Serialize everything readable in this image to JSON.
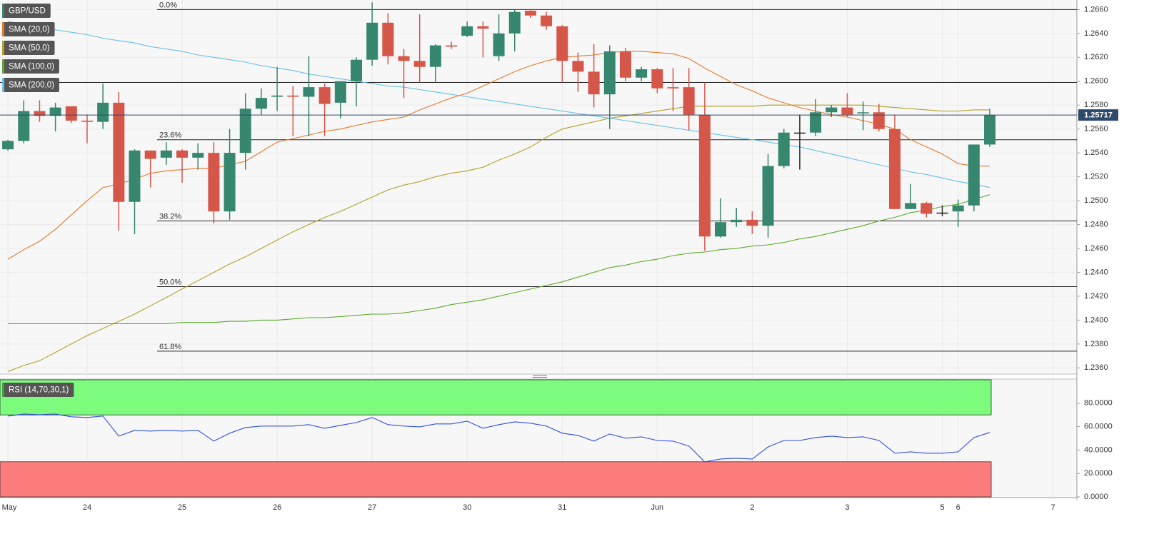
{
  "chart_data": [
    {
      "type": "candlestick",
      "name": "GBP/USD",
      "up_color": "#37866f",
      "down_color": "#d5574a",
      "categories": [
        "May",
        null,
        null,
        null,
        null,
        "24",
        null,
        null,
        null,
        null,
        null,
        "25",
        null,
        null,
        null,
        null,
        null,
        "26",
        null,
        null,
        null,
        null,
        null,
        "27",
        null,
        null,
        null,
        null,
        null,
        "30",
        null,
        null,
        null,
        null,
        null,
        "31",
        null,
        null,
        null,
        null,
        null,
        "Jun",
        null,
        null,
        null,
        null,
        null,
        "2",
        null,
        null,
        null,
        null,
        null,
        "3",
        null,
        null,
        null,
        null,
        null,
        "5",
        "6",
        null,
        null,
        null,
        null,
        null,
        "7",
        null
      ],
      "open": [
        1.2543,
        1.255,
        1.2575,
        1.2571,
        1.2579,
        1.2567,
        1.2566,
        1.2582,
        1.2499,
        1.2542,
        1.2536,
        1.2542,
        1.2536,
        1.254,
        1.2491,
        1.254,
        1.2577,
        1.2587,
        1.2588,
        1.2587,
        1.2595,
        1.2582,
        1.26,
        1.2618,
        1.2649,
        1.2621,
        1.2617,
        1.2612,
        1.263,
        1.2638,
        1.2646,
        1.2621,
        1.264,
        1.2659,
        1.2655,
        1.2646,
        1.2617,
        1.2608,
        1.2589,
        1.2625,
        1.2603,
        1.261,
        1.2595,
        1.2595,
        1.2572,
        1.247,
        1.2482,
        1.2484,
        1.2479,
        1.2529,
        1.2557,
        1.2557,
        1.2574,
        1.2578,
        1.2573,
        1.2574,
        1.256,
        1.2493,
        1.2498,
        1.249,
        1.2491,
        1.2496,
        1.2547,
        null,
        null,
        null,
        null,
        null
      ],
      "high": [
        1.2551,
        1.2584,
        1.2584,
        1.2582,
        1.2579,
        1.2572,
        1.2598,
        1.2591,
        1.2543,
        1.2542,
        1.2549,
        1.2543,
        1.2548,
        1.2549,
        1.256,
        1.259,
        1.2594,
        1.2612,
        1.2596,
        1.2621,
        1.2598,
        1.26,
        1.262,
        1.2666,
        1.2657,
        1.2627,
        1.2656,
        1.2631,
        1.2633,
        1.265,
        1.265,
        1.2656,
        1.266,
        1.266,
        1.2658,
        1.2647,
        1.2624,
        1.2631,
        1.263,
        1.2628,
        1.2612,
        1.2611,
        1.2611,
        1.2611,
        1.2599,
        1.2502,
        1.2494,
        1.2491,
        1.2539,
        1.256,
        1.2572,
        1.2585,
        1.258,
        1.259,
        1.2583,
        1.2581,
        1.2572,
        1.2514,
        1.2499,
        1.2496,
        1.2501,
        1.2547,
        1.2577,
        null,
        null,
        null,
        null,
        null
      ],
      "low": [
        1.2542,
        1.2548,
        1.2566,
        1.2558,
        1.2565,
        1.2548,
        1.256,
        1.2475,
        1.2472,
        1.2511,
        1.253,
        1.2515,
        1.2526,
        1.2481,
        1.2484,
        1.2526,
        1.2572,
        1.2575,
        1.2554,
        1.2554,
        1.2554,
        1.2569,
        1.2579,
        1.2613,
        1.2614,
        1.2586,
        1.2599,
        1.2599,
        1.2627,
        1.2637,
        1.262,
        1.2617,
        1.2625,
        1.2653,
        1.2643,
        1.2599,
        1.2591,
        1.2578,
        1.256,
        1.26,
        1.26,
        1.259,
        1.2575,
        1.2559,
        1.2458,
        1.2469,
        1.2478,
        1.2472,
        1.2469,
        1.2527,
        1.2526,
        1.2554,
        1.257,
        1.257,
        1.2559,
        1.2558,
        1.2493,
        1.2493,
        1.2486,
        1.2487,
        1.2478,
        1.2491,
        1.2545,
        null,
        null,
        null,
        null,
        null
      ],
      "close": [
        1.255,
        1.2575,
        1.2571,
        1.2578,
        1.2567,
        1.2566,
        1.2582,
        1.2499,
        1.2542,
        1.2535,
        1.2542,
        1.2536,
        1.254,
        1.2491,
        1.254,
        1.2577,
        1.2586,
        1.2588,
        1.2587,
        1.2595,
        1.2581,
        1.26,
        1.2618,
        1.2649,
        1.2621,
        1.2617,
        1.2612,
        1.263,
        1.2629,
        1.2646,
        1.2644,
        1.264,
        1.2658,
        1.2655,
        1.2646,
        1.2617,
        1.2608,
        1.2589,
        1.2625,
        1.2603,
        1.261,
        1.2594,
        1.2594,
        1.2572,
        1.247,
        1.2482,
        1.2484,
        1.2479,
        1.2529,
        1.2557,
        1.2557,
        1.2574,
        1.2578,
        1.2572,
        1.2574,
        1.256,
        1.2493,
        1.2498,
        1.2489,
        1.249,
        1.2496,
        1.2547,
        1.25717,
        null,
        null,
        null,
        null,
        null
      ],
      "overlays": [
        {
          "name": "SMA (20,0)",
          "color": "#e8772e",
          "values": [
            1.2451,
            1.2459,
            1.2466,
            1.2476,
            1.2488,
            1.25,
            1.2511,
            1.2514,
            1.2518,
            1.2523,
            1.2525,
            1.2526,
            1.2527,
            1.2527,
            1.253,
            1.2533,
            1.2541,
            1.2549,
            1.2552,
            1.2555,
            1.2558,
            1.256,
            1.2563,
            1.2566,
            1.2568,
            1.257,
            1.2576,
            1.2581,
            1.2586,
            1.259,
            1.2596,
            1.2602,
            1.2608,
            1.2613,
            1.2617,
            1.262,
            1.2621,
            1.2622,
            1.2624,
            1.2625,
            1.2625,
            1.2624,
            1.2623,
            1.2619,
            1.2611,
            1.2604,
            1.2597,
            1.2592,
            1.2586,
            1.2582,
            1.2578,
            1.2575,
            1.2572,
            1.257,
            1.2567,
            1.2564,
            1.256,
            1.2551,
            1.2545,
            1.2539,
            1.2531,
            1.2529,
            1.2529,
            null,
            null,
            null,
            null,
            null
          ]
        },
        {
          "name": "SMA (50,0)",
          "color": "#b3a027",
          "values": [
            1.2357,
            1.2362,
            1.2366,
            1.2373,
            1.238,
            1.2387,
            1.2393,
            1.2399,
            1.2405,
            1.2412,
            1.2419,
            1.2426,
            1.2433,
            1.244,
            1.2447,
            1.2453,
            1.246,
            1.2467,
            1.2474,
            1.248,
            1.2486,
            1.2491,
            1.2497,
            1.2503,
            1.2509,
            1.2513,
            1.2516,
            1.252,
            1.2523,
            1.2525,
            1.2528,
            1.2534,
            1.2539,
            1.2545,
            1.2553,
            1.256,
            1.2563,
            1.2566,
            1.2569,
            1.2571,
            1.2573,
            1.2575,
            1.2577,
            1.2579,
            1.2579,
            1.2579,
            1.2579,
            1.2579,
            1.258,
            1.258,
            1.258,
            1.258,
            1.258,
            1.258,
            1.258,
            1.2579,
            1.2578,
            1.2577,
            1.2576,
            1.2575,
            1.2575,
            1.2576,
            1.2576,
            null,
            null,
            null,
            null,
            null
          ]
        },
        {
          "name": "SMA (100,0)",
          "color": "#5aab2c",
          "values": [
            1.2397,
            1.2397,
            1.2397,
            1.2397,
            1.2397,
            1.2397,
            1.2397,
            1.2397,
            1.2397,
            1.2397,
            1.2397,
            1.2398,
            1.2398,
            1.2398,
            1.2399,
            1.2399,
            1.24,
            1.24,
            1.2401,
            1.2402,
            1.2402,
            1.2403,
            1.2404,
            1.2405,
            1.2405,
            1.2406,
            1.2408,
            1.241,
            1.2413,
            1.2415,
            1.2417,
            1.242,
            1.2423,
            1.2426,
            1.2429,
            1.2432,
            1.2436,
            1.244,
            1.2444,
            1.2446,
            1.2449,
            1.2451,
            1.2454,
            1.2456,
            1.2457,
            1.2459,
            1.246,
            1.2462,
            1.2463,
            1.2465,
            1.2468,
            1.247,
            1.2473,
            1.2476,
            1.2479,
            1.2483,
            1.2486,
            1.249,
            1.2492,
            1.2495,
            1.2497,
            1.2501,
            1.2505,
            null,
            null,
            null,
            null,
            null
          ]
        },
        {
          "name": "SMA (200,0)",
          "color": "#6bbfe8",
          "values": [
            1.265,
            1.2648,
            1.2645,
            1.2643,
            1.2641,
            1.2639,
            1.2636,
            1.2634,
            1.2632,
            1.2629,
            1.2627,
            1.2625,
            1.2622,
            1.262,
            1.2618,
            1.2616,
            1.2613,
            1.2611,
            1.2609,
            1.2606,
            1.2604,
            1.2602,
            1.26,
            1.2598,
            1.2596,
            1.2595,
            1.2593,
            1.2591,
            1.2589,
            1.2587,
            1.2585,
            1.2583,
            1.2581,
            1.2579,
            1.2577,
            1.2575,
            1.2573,
            1.2571,
            1.2569,
            1.2567,
            1.2565,
            1.2563,
            1.2561,
            1.2559,
            1.2557,
            1.2555,
            1.2553,
            1.2551,
            1.2549,
            1.2547,
            1.2545,
            1.2542,
            1.2539,
            1.2536,
            1.2533,
            1.253,
            1.2527,
            1.2524,
            1.2522,
            1.2519,
            1.2516,
            1.2514,
            1.2511,
            null,
            null,
            null,
            null,
            null
          ]
        }
      ],
      "levels": [
        {
          "label": "0.0%",
          "value": 1.266
        },
        {
          "label": "23.6%",
          "value": 1.2551
        },
        {
          "label": "38.2%",
          "value": 1.2483
        },
        {
          "label": "50.0%",
          "value": 1.2428
        },
        {
          "label": "61.8%",
          "value": 1.2374
        }
      ],
      "lines": [
        1.2599
      ],
      "last_price": 1.25717,
      "last_price_color": "#2e4a6b",
      "ylim": [
        1.2356,
        1.2668
      ],
      "yticks": [
        {
          "value": 1.236,
          "label": "1.2360"
        },
        {
          "value": 1.238,
          "label": "1.2380"
        },
        {
          "value": 1.24,
          "label": "1.2400"
        },
        {
          "value": 1.242,
          "label": "1.2420"
        },
        {
          "value": 1.244,
          "label": "1.2440"
        },
        {
          "value": 1.246,
          "label": "1.2460"
        },
        {
          "value": 1.248,
          "label": "1.2480"
        },
        {
          "value": 1.25,
          "label": "1.2500"
        },
        {
          "value": 1.252,
          "label": "1.2520"
        },
        {
          "value": 1.254,
          "label": "1.2540"
        },
        {
          "value": 1.256,
          "label": "1.2560"
        },
        {
          "value": 1.258,
          "label": "1.2580"
        },
        {
          "value": 1.26,
          "label": "1.2600"
        },
        {
          "value": 1.262,
          "label": "1.2620"
        },
        {
          "value": 1.264,
          "label": "1.2640"
        },
        {
          "value": 1.266,
          "label": "1.2660"
        }
      ],
      "grid": true
    },
    {
      "type": "line",
      "name": "RSI (14,70,30,1)",
      "color": "#2f4fe0",
      "legend_color": "#3aa53a",
      "values": [
        69.0,
        70.8,
        70.2,
        70.8,
        68.4,
        67.8,
        69.0,
        51.9,
        56.8,
        56.2,
        56.8,
        56.2,
        56.8,
        47.6,
        54.4,
        59.2,
        60.5,
        60.5,
        60.5,
        61.7,
        58.6,
        61.1,
        63.5,
        67.8,
        61.7,
        60.5,
        59.8,
        62.3,
        62.3,
        64.7,
        58.6,
        61.7,
        64.1,
        62.9,
        60.5,
        54.4,
        52.5,
        47.6,
        53.7,
        50.1,
        51.3,
        48.2,
        47.6,
        43.4,
        29.9,
        32.4,
        33.0,
        32.4,
        42.7,
        48.2,
        48.2,
        50.7,
        51.9,
        50.7,
        51.3,
        48.2,
        37.3,
        38.5,
        37.3,
        37.3,
        38.5,
        50.7,
        55.0,
        null,
        null,
        null,
        null,
        null
      ],
      "zones": [
        {
          "range": [
            70,
            100
          ],
          "color": "#7dfb7d"
        },
        {
          "range": [
            0,
            30
          ],
          "color": "#fd7d7d"
        }
      ],
      "ylim": [
        0,
        100
      ],
      "yticks": [
        {
          "value": 0,
          "label": "0.0000"
        },
        {
          "value": 20,
          "label": "20.0000"
        },
        {
          "value": 40,
          "label": "40.0000"
        },
        {
          "value": 60,
          "label": "60.0000"
        },
        {
          "value": 80,
          "label": "80.0000"
        }
      ]
    }
  ]
}
